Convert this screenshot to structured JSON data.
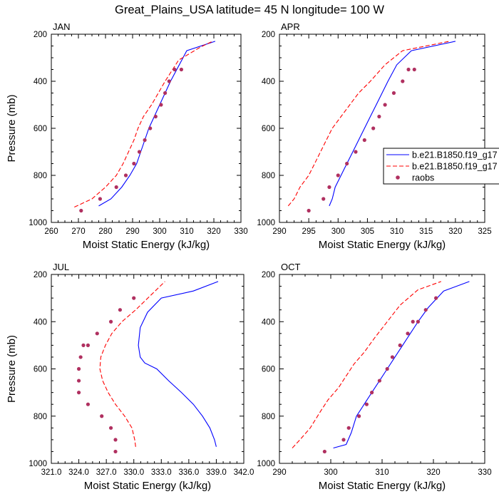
{
  "title": "Great_Plains_USA  latitude= 45 N longitude= 100 W",
  "legend": [
    {
      "label": "b.e21.B1850.f19_g17",
      "style": "solid",
      "color": "#0000ff"
    },
    {
      "label": "b.e21.B1850.f19_g17",
      "style": "dashed",
      "color": "#ff0000"
    },
    {
      "label": "raobs",
      "style": "marker",
      "color": "#b03060"
    }
  ],
  "chart_data": [
    {
      "type": "line",
      "title": "JAN",
      "xlabel": "Moist Static Energy (kJ/kg)",
      "ylabel": "Pressure (mb)",
      "xlim": [
        260,
        330
      ],
      "ylim": [
        1000,
        200
      ],
      "xticks": [
        "260",
        "270",
        "280",
        "290",
        "300",
        "310",
        "320",
        "330"
      ],
      "xtick_values": [
        260,
        270,
        280,
        290,
        300,
        310,
        320,
        330
      ],
      "yticks": [
        "200",
        "400",
        "600",
        "800",
        "1000"
      ],
      "ytick_values": [
        200,
        400,
        600,
        800,
        1000
      ],
      "series": [
        {
          "name": "b.e21.B1850.f19_g17",
          "style": "solid",
          "color": "#0000ff",
          "x": [
            277.5,
            282,
            286,
            289,
            291.5,
            293,
            294.5,
            296,
            298,
            300,
            304,
            310,
            320.5
          ],
          "y": [
            930,
            900,
            850,
            800,
            750,
            700,
            650,
            600,
            550,
            500,
            400,
            270,
            230
          ]
        },
        {
          "name": "b.e21.B1850.f19_g17",
          "style": "dashed",
          "color": "#ff0000",
          "x": [
            268.5,
            275,
            280,
            284,
            286.5,
            288.5,
            290.5,
            292,
            294,
            297,
            302,
            307,
            315,
            319.5
          ],
          "y": [
            935,
            900,
            850,
            800,
            750,
            700,
            650,
            600,
            550,
            500,
            400,
            310,
            255,
            230
          ]
        },
        {
          "name": "raobs",
          "style": "marker",
          "color": "#b03060",
          "x": [
            271,
            278,
            284,
            287.5,
            290.5,
            292.5,
            294.5,
            296.5,
            298.5,
            300.5,
            302,
            303.5,
            305.5,
            308
          ],
          "y": [
            950,
            900,
            850,
            800,
            750,
            700,
            650,
            600,
            550,
            500,
            450,
            400,
            350,
            350
          ]
        }
      ]
    },
    {
      "type": "line",
      "title": "APR",
      "xlabel": "Moist Static Energy (kJ/kg)",
      "ylabel": "",
      "xlim": [
        290,
        325
      ],
      "ylim": [
        1000,
        200
      ],
      "xticks": [
        "290",
        "295",
        "300",
        "305",
        "310",
        "315",
        "320",
        "325"
      ],
      "xtick_values": [
        290,
        295,
        300,
        305,
        310,
        315,
        320,
        325
      ],
      "yticks": [
        "200",
        "400",
        "600",
        "800",
        "1000"
      ],
      "ytick_values": [
        200,
        400,
        600,
        800,
        1000
      ],
      "series": [
        {
          "name": "b.e21.B1850.f19_g17",
          "style": "solid",
          "color": "#0000ff",
          "x": [
            298.5,
            299,
            299.5,
            300.5,
            301.5,
            302.5,
            303.5,
            304.5,
            305.5,
            306.5,
            307.5,
            308.5,
            310,
            312.5,
            320
          ],
          "y": [
            930,
            900,
            850,
            800,
            750,
            700,
            650,
            600,
            550,
            500,
            450,
            400,
            330,
            270,
            230
          ]
        },
        {
          "name": "b.e21.B1850.f19_g17",
          "style": "dashed",
          "color": "#ff0000",
          "x": [
            291.5,
            292.5,
            293.5,
            295,
            296,
            297,
            298,
            299,
            300.5,
            302,
            303.5,
            305.5,
            308,
            311,
            319
          ],
          "y": [
            930,
            900,
            850,
            800,
            750,
            700,
            650,
            600,
            550,
            500,
            450,
            400,
            330,
            270,
            230
          ]
        },
        {
          "name": "raobs",
          "style": "marker",
          "color": "#b03060",
          "x": [
            295,
            297.5,
            298.5,
            300,
            301.5,
            303,
            304.5,
            306,
            307,
            308,
            309.5,
            311,
            312,
            313
          ],
          "y": [
            950,
            900,
            850,
            800,
            750,
            700,
            650,
            600,
            550,
            500,
            450,
            400,
            350,
            350
          ]
        }
      ]
    },
    {
      "type": "line",
      "title": "JUL",
      "xlabel": "Moist Static Energy (kJ/kg)",
      "ylabel": "Pressure (mb)",
      "xlim": [
        321.0,
        342.0
      ],
      "ylim": [
        1000,
        200
      ],
      "xticks": [
        "321.0",
        "324.0",
        "327.0",
        "330.0",
        "333.0",
        "336.0",
        "339.0",
        "342.0"
      ],
      "xtick_values": [
        321,
        324,
        327,
        330,
        333,
        336,
        339,
        342
      ],
      "yticks": [
        "200",
        "400",
        "600",
        "800",
        "1000"
      ],
      "ytick_values": [
        200,
        400,
        600,
        800,
        1000
      ],
      "series": [
        {
          "name": "b.e21.B1850.f19_g17",
          "style": "solid",
          "color": "#0000ff",
          "x": [
            339,
            338.8,
            338.3,
            337.5,
            336.5,
            335.2,
            333.8,
            332.5,
            331.2,
            330.7,
            330.5,
            330.7,
            331.5,
            333,
            336.5,
            339.2
          ],
          "y": [
            930,
            900,
            850,
            800,
            750,
            700,
            650,
            600,
            575,
            550,
            500,
            425,
            360,
            300,
            270,
            230
          ]
        },
        {
          "name": "b.e21.B1850.f19_g17",
          "style": "dashed",
          "color": "#ff0000",
          "x": [
            330.2,
            330.1,
            329.8,
            329,
            328,
            327.2,
            326.6,
            326.3,
            326.4,
            326.9,
            327.6,
            328.7,
            330.2,
            333.4
          ],
          "y": [
            930,
            900,
            850,
            800,
            750,
            700,
            650,
            600,
            550,
            500,
            450,
            400,
            350,
            230
          ]
        },
        {
          "name": "raobs",
          "style": "marker",
          "color": "#b03060",
          "x": [
            328.0,
            328.0,
            327.5,
            326.5,
            325.0,
            324.0,
            324.0,
            324.0,
            324.2,
            324.5,
            325.0,
            326.0,
            327.5,
            328.5,
            330.0
          ],
          "y": [
            950,
            900,
            850,
            800,
            750,
            700,
            650,
            600,
            550,
            500,
            500,
            450,
            400,
            350,
            300
          ]
        }
      ]
    },
    {
      "type": "line",
      "title": "OCT",
      "xlabel": "Moist Static Energy (kJ/kg)",
      "ylabel": "",
      "xlim": [
        290,
        330
      ],
      "ylim": [
        1000,
        200
      ],
      "xticks": [
        "290",
        "300",
        "310",
        "320",
        "330"
      ],
      "xtick_values": [
        290,
        300,
        310,
        320,
        330
      ],
      "yticks": [
        "200",
        "400",
        "600",
        "800",
        "1000"
      ],
      "ytick_values": [
        200,
        400,
        600,
        800,
        1000
      ],
      "series": [
        {
          "name": "b.e21.B1850.f19_g17",
          "style": "solid",
          "color": "#0000ff",
          "x": [
            300.5,
            303,
            304,
            305,
            306.5,
            308,
            309.5,
            311,
            312.5,
            314,
            315.5,
            317,
            319,
            322,
            327
          ],
          "y": [
            935,
            920,
            870,
            800,
            750,
            700,
            650,
            600,
            550,
            500,
            450,
            400,
            340,
            270,
            230
          ]
        },
        {
          "name": "b.e21.B1850.f19_g17",
          "style": "dashed",
          "color": "#ff0000",
          "x": [
            292.5,
            294,
            296,
            298,
            299.5,
            301.5,
            303,
            304.5,
            306.5,
            308.5,
            311,
            313.5,
            317,
            321.5
          ],
          "y": [
            935,
            900,
            850,
            780,
            730,
            680,
            630,
            580,
            530,
            470,
            400,
            330,
            265,
            230
          ]
        },
        {
          "name": "raobs",
          "style": "marker",
          "color": "#b03060",
          "x": [
            298.8,
            302.5,
            303.5,
            305.5,
            307,
            308,
            309.5,
            311,
            312,
            313.5,
            315,
            316,
            317,
            318.5,
            320.5
          ],
          "y": [
            950,
            900,
            850,
            800,
            750,
            700,
            650,
            600,
            550,
            500,
            450,
            400,
            400,
            350,
            300
          ]
        }
      ]
    }
  ]
}
